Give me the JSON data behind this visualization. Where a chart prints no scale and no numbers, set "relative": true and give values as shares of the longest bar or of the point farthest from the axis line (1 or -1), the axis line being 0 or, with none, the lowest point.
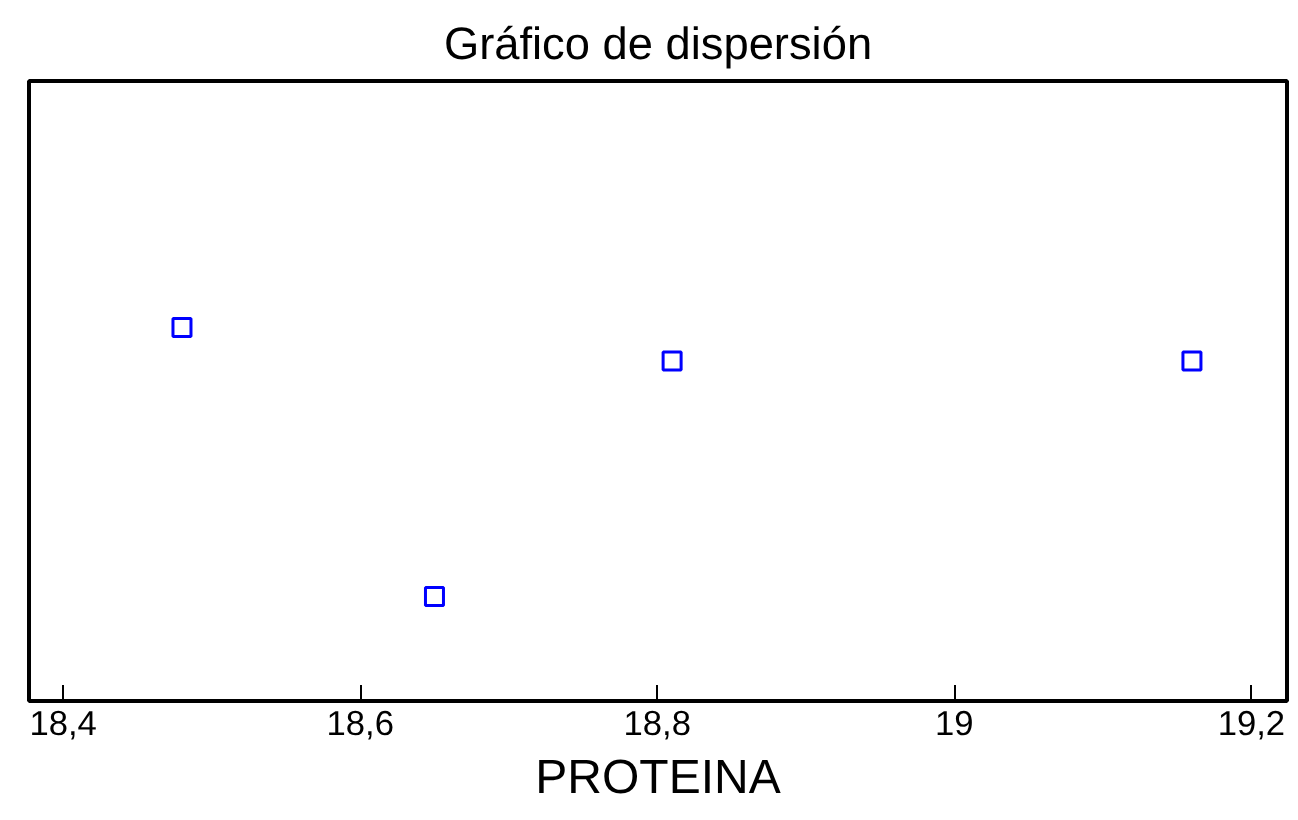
{
  "chart_data": {
    "type": "scatter",
    "title": "Gráfico de dispersión",
    "xlabel": "PROTEINA",
    "x": [
      18.48,
      18.65,
      18.81,
      19.16
    ],
    "series": [
      {
        "color": "#0000ff",
        "values": [
          1,
          0.28,
          0.91,
          0.91
        ]
      }
    ],
    "relative": true,
    "marker": "square",
    "xlim": [
      18.377,
      19.224
    ],
    "xticks": [
      {
        "value": 18.4,
        "label": "18,4"
      },
      {
        "value": 18.6,
        "label": "18,6"
      },
      {
        "value": 18.8,
        "label": "18,8"
      },
      {
        "value": 19,
        "label": "19"
      },
      {
        "value": 19.2,
        "label": "19,2"
      }
    ],
    "grid": false
  }
}
